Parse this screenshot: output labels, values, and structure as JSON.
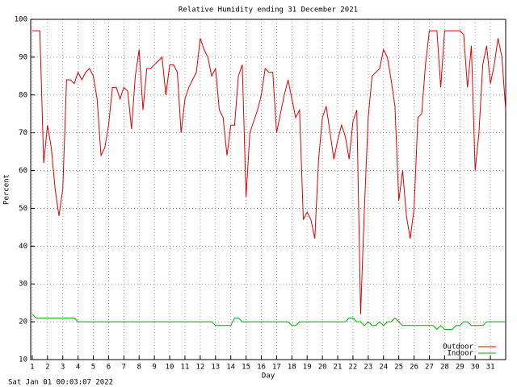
{
  "chart_data": {
    "type": "line",
    "title": "Relative Humidity ending 31 December 2021",
    "xlabel": "Day",
    "ylabel": "Percent",
    "footer": "Sat Jan 01 00:03:07 2022",
    "legend": "lower right",
    "grid": true,
    "xlim": [
      0.9,
      32
    ],
    "ylim": [
      10,
      100
    ],
    "xticks": [
      1,
      2,
      3,
      4,
      5,
      6,
      7,
      8,
      9,
      10,
      11,
      12,
      13,
      14,
      15,
      16,
      17,
      18,
      19,
      20,
      21,
      22,
      23,
      24,
      25,
      26,
      27,
      28,
      29,
      30,
      31
    ],
    "yticks": [
      10,
      20,
      30,
      40,
      50,
      60,
      70,
      80,
      90,
      100
    ],
    "x": [
      1,
      1.25,
      1.5,
      1.75,
      2,
      2.25,
      2.5,
      2.75,
      3,
      3.25,
      3.5,
      3.75,
      4,
      4.25,
      4.5,
      4.75,
      5,
      5.25,
      5.5,
      5.75,
      6,
      6.25,
      6.5,
      6.75,
      7,
      7.25,
      7.5,
      7.75,
      8,
      8.25,
      8.5,
      8.75,
      9,
      9.25,
      9.5,
      9.75,
      10,
      10.25,
      10.5,
      10.75,
      11,
      11.25,
      11.5,
      11.75,
      12,
      12.25,
      12.5,
      12.75,
      13,
      13.25,
      13.5,
      13.75,
      14,
      14.25,
      14.5,
      14.75,
      15,
      15.25,
      15.5,
      15.75,
      16,
      16.25,
      16.5,
      16.75,
      17,
      17.25,
      17.5,
      17.75,
      18,
      18.25,
      18.5,
      18.75,
      19,
      19.25,
      19.5,
      19.75,
      20,
      20.25,
      20.5,
      20.75,
      21,
      21.25,
      21.5,
      21.75,
      22,
      22.25,
      22.5,
      22.75,
      23,
      23.25,
      23.5,
      23.75,
      24,
      24.25,
      24.5,
      24.75,
      25,
      25.25,
      25.5,
      25.75,
      26,
      26.25,
      26.5,
      26.75,
      27,
      27.25,
      27.5,
      27.75,
      28,
      28.25,
      28.5,
      28.75,
      29,
      29.25,
      29.5,
      29.75,
      30,
      30.25,
      30.5,
      30.75,
      31,
      31.25,
      31.5,
      31.75,
      32
    ],
    "series": [
      {
        "name": "Outdoor",
        "color": "#e00000",
        "values": [
          97,
          97,
          97,
          62,
          72,
          66,
          55,
          48,
          55,
          84,
          84,
          83,
          86,
          84,
          86,
          87,
          85,
          79,
          64,
          66,
          72,
          82,
          82,
          79,
          82,
          81,
          71,
          85,
          92,
          76,
          87,
          87,
          88,
          89,
          90,
          80,
          88,
          88,
          86,
          70,
          79,
          82,
          84,
          86,
          95,
          92,
          90,
          85,
          87,
          76,
          74,
          64,
          72,
          72,
          85,
          88,
          53,
          70,
          73,
          76,
          80,
          87,
          86,
          86,
          70,
          75,
          80,
          84,
          79,
          74,
          76,
          47,
          49,
          47,
          42,
          63,
          74,
          77,
          70,
          63,
          68,
          72,
          69,
          63,
          73,
          76,
          22,
          50,
          74,
          85,
          86,
          87,
          92,
          90,
          84,
          77,
          52,
          60,
          48,
          42,
          50,
          74,
          75,
          88,
          97,
          97,
          97,
          82,
          97,
          97,
          97,
          97,
          97,
          96,
          82,
          93,
          60,
          70,
          88,
          93,
          83,
          88,
          95,
          90,
          76
        ]
      },
      {
        "name": "Indoor",
        "color": "#00b000",
        "values": [
          22,
          21,
          21,
          21,
          21,
          21,
          21,
          21,
          21,
          21,
          21,
          21,
          20,
          20,
          20,
          20,
          20,
          20,
          20,
          20,
          20,
          20,
          20,
          20,
          20,
          20,
          20,
          20,
          20,
          20,
          20,
          20,
          20,
          20,
          20,
          20,
          20,
          20,
          20,
          20,
          20,
          20,
          20,
          20,
          20,
          20,
          20,
          20,
          19,
          19,
          19,
          19,
          19,
          21,
          21,
          20,
          20,
          20,
          20,
          20,
          20,
          20,
          20,
          20,
          20,
          20,
          20,
          20,
          19,
          19,
          20,
          20,
          20,
          20,
          20,
          20,
          20,
          20,
          20,
          20,
          20,
          20,
          20,
          21,
          21,
          20,
          20,
          19,
          20,
          19,
          19,
          20,
          19,
          20,
          20,
          21,
          20,
          19,
          19,
          19,
          19,
          19,
          19,
          19,
          19,
          19,
          18,
          19,
          18,
          18,
          18,
          19,
          19,
          20,
          20,
          19,
          19,
          19,
          19,
          20,
          20,
          20,
          20,
          20,
          20
        ]
      }
    ]
  }
}
